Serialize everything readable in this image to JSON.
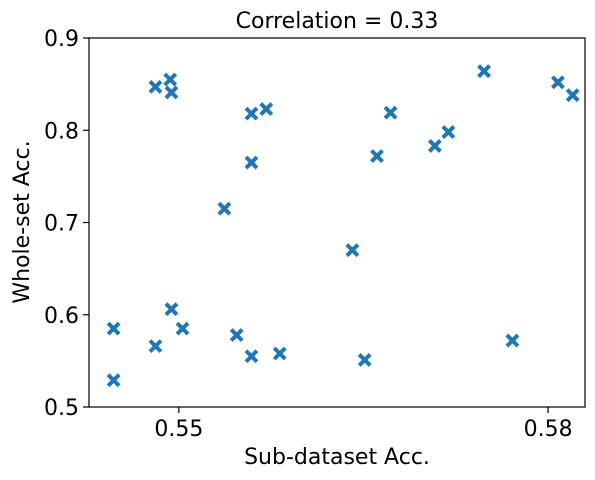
{
  "chart_data": {
    "type": "scatter",
    "title": "Correlation = 0.33",
    "xlabel": "Sub-dataset Acc.",
    "ylabel": "Whole-set Acc.",
    "xlim": [
      0.5427,
      0.583
    ],
    "ylim": [
      0.5,
      0.9
    ],
    "xticks": [
      0.55,
      0.58
    ],
    "xtick_labels": [
      "0.55",
      "0.58"
    ],
    "yticks": [
      0.5,
      0.6,
      0.7,
      0.8,
      0.9
    ],
    "ytick_labels": [
      "0.5",
      "0.6",
      "0.7",
      "0.8",
      "0.9"
    ],
    "grid": false,
    "marker": "x",
    "color": "#1f77b4",
    "points": [
      {
        "x": 0.5447,
        "y": 0.529
      },
      {
        "x": 0.5447,
        "y": 0.585
      },
      {
        "x": 0.5481,
        "y": 0.566
      },
      {
        "x": 0.5481,
        "y": 0.847
      },
      {
        "x": 0.5493,
        "y": 0.855
      },
      {
        "x": 0.5494,
        "y": 0.841
      },
      {
        "x": 0.5494,
        "y": 0.606
      },
      {
        "x": 0.5503,
        "y": 0.585
      },
      {
        "x": 0.5537,
        "y": 0.715
      },
      {
        "x": 0.5547,
        "y": 0.578
      },
      {
        "x": 0.5559,
        "y": 0.555
      },
      {
        "x": 0.5559,
        "y": 0.765
      },
      {
        "x": 0.5559,
        "y": 0.818
      },
      {
        "x": 0.5571,
        "y": 0.823
      },
      {
        "x": 0.5582,
        "y": 0.558
      },
      {
        "x": 0.5641,
        "y": 0.67
      },
      {
        "x": 0.5651,
        "y": 0.551
      },
      {
        "x": 0.5661,
        "y": 0.772
      },
      {
        "x": 0.5672,
        "y": 0.819
      },
      {
        "x": 0.5708,
        "y": 0.783
      },
      {
        "x": 0.5719,
        "y": 0.798
      },
      {
        "x": 0.5748,
        "y": 0.864
      },
      {
        "x": 0.5771,
        "y": 0.572
      },
      {
        "x": 0.5808,
        "y": 0.852
      },
      {
        "x": 0.582,
        "y": 0.838
      }
    ]
  }
}
